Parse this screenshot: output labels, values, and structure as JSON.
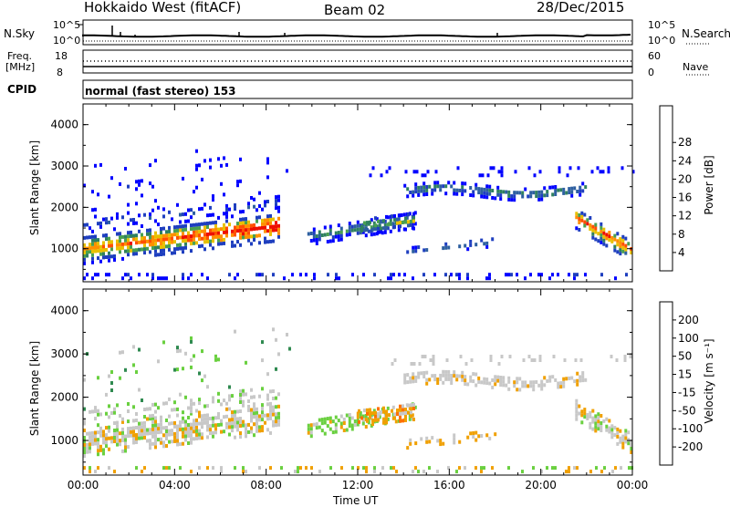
{
  "header": {
    "station": "Hokkaido West (fitACF)",
    "beam": "Beam 02",
    "date": "28/Dec/2015"
  },
  "sky_panel": {
    "left_label": "N.Sky",
    "right_label": "N.Search",
    "left_ticks": [
      "10^5",
      "10^0"
    ],
    "right_ticks": [
      "10^5",
      "10^0"
    ]
  },
  "freq_panel": {
    "left_label_1": "Freq.",
    "left_label_2": "[MHz]",
    "left_ticks": [
      "18",
      "8"
    ],
    "right_label": "Nave",
    "right_ticks": [
      "60",
      "0"
    ]
  },
  "cpid_panel": {
    "label": "CPID",
    "mode": "normal (fast stereo) 153"
  },
  "chart_data": [
    {
      "type": "heatmap",
      "name": "power",
      "ylabel": "Slant Range [km]",
      "ylim": [
        200,
        4500
      ],
      "y_ticks": [
        "1000",
        "2000",
        "3000",
        "4000"
      ],
      "x_ticks": [
        "00:00",
        "04:00",
        "08:00",
        "12:00",
        "16:00",
        "20:00",
        "00:00"
      ],
      "colorbar_label": "Power [dB]",
      "colorbar_ticks": [
        "4",
        "8",
        "12",
        "16",
        "20",
        "24",
        "28"
      ],
      "colors": [
        "#0000ff",
        "#1f3fbf",
        "#2d5fa0",
        "#2f8060",
        "#4aa050",
        "#e8c000",
        "#ff9000",
        "#ff5000",
        "#ee1000"
      ]
    },
    {
      "type": "heatmap",
      "name": "velocity",
      "ylabel": "Slant Range [km]",
      "xlabel": "Time UT",
      "ylim": [
        200,
        4500
      ],
      "y_ticks": [
        "1000",
        "2000",
        "3000",
        "4000"
      ],
      "x_ticks": [
        "00:00",
        "04:00",
        "08:00",
        "12:00",
        "16:00",
        "20:00",
        "00:00"
      ],
      "colorbar_label": "Velocity [m s⁻¹]",
      "colorbar_ticks": [
        "200",
        "100",
        "50",
        "15",
        "-15",
        "-50",
        "-100",
        "-200"
      ],
      "colors": [
        "#0028a8",
        "#2a6ab0",
        "#2f8a50",
        "#6ad040",
        "#c8c8c8",
        "#f0a000",
        "#ff7000",
        "#ff3000",
        "#e80000"
      ]
    }
  ]
}
